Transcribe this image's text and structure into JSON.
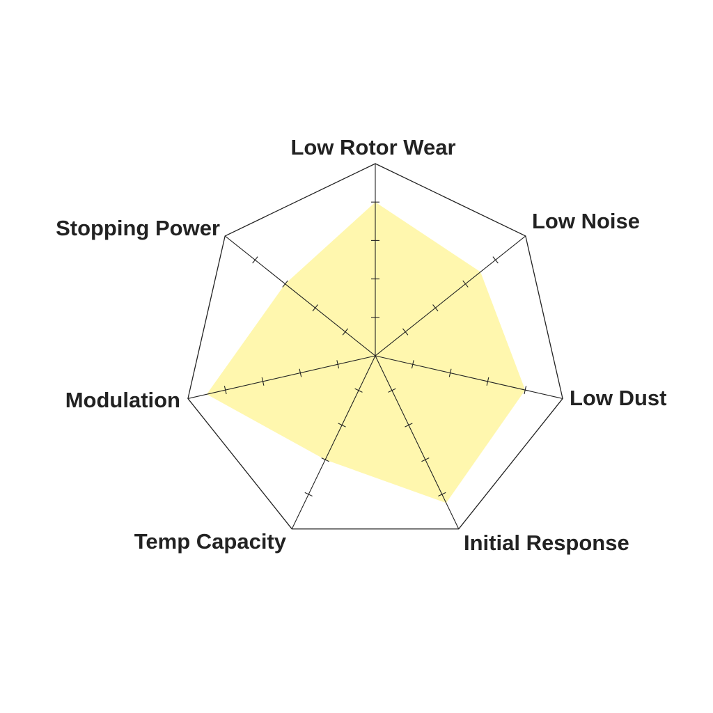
{
  "chart_data": {
    "type": "radar",
    "title": "",
    "axes": [
      "Low Rotor Wear",
      "Low Noise",
      "Low Dust",
      "Initial Response",
      "Temp Capacity",
      "Modulation",
      "Stopping Power"
    ],
    "series": [
      {
        "values": [
          8,
          7,
          8,
          8.5,
          6,
          9,
          6
        ]
      }
    ],
    "range": [
      0,
      10
    ],
    "tick_step": 2,
    "grid": "outer polygon only, tick marks on spokes",
    "colors": {
      "fill": "#fff59a",
      "line": "#222222"
    }
  }
}
